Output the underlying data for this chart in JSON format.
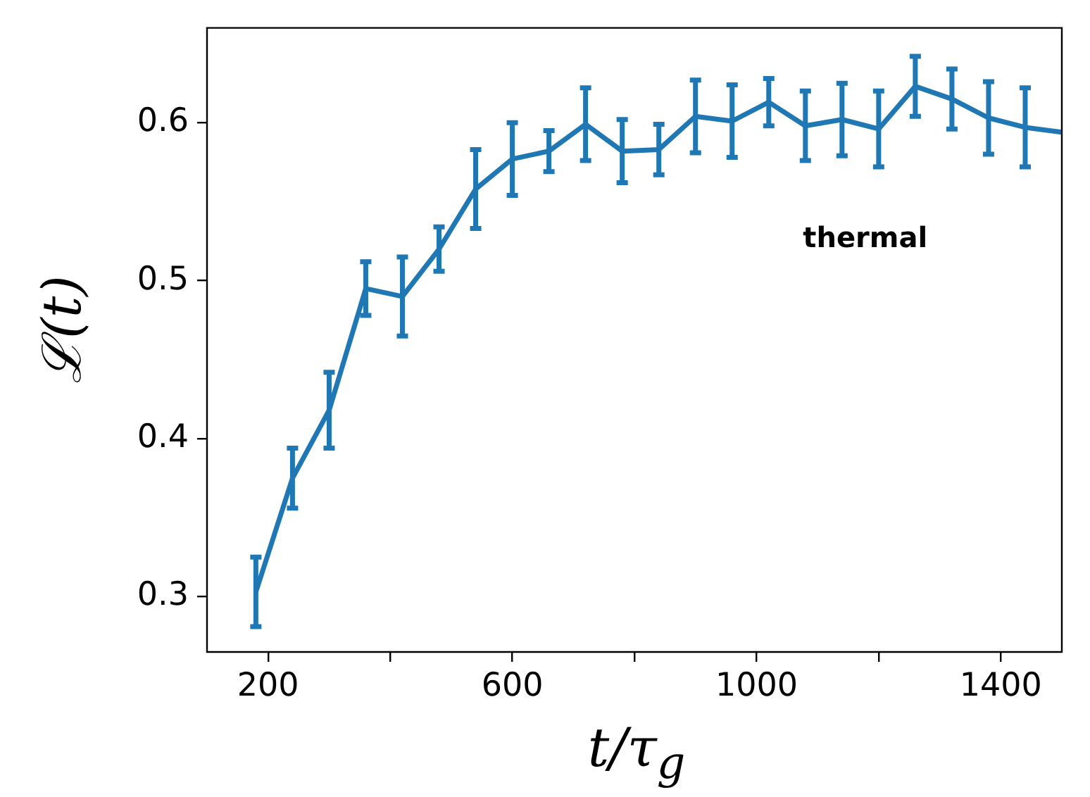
{
  "chart_data": {
    "type": "line",
    "xlabel": "t/τ$_{g}$",
    "ylabel": "ℒ(t)",
    "x": [
      180,
      240,
      300,
      360,
      420,
      480,
      540,
      600,
      660,
      720,
      780,
      840,
      900,
      960,
      1020,
      1080,
      1140,
      1200,
      1260,
      1320,
      1380,
      1440,
      1500
    ],
    "series": [
      {
        "color": "#1f77b4",
        "values": [
          0.303,
          0.375,
          0.418,
          0.495,
          0.49,
          0.52,
          0.558,
          0.577,
          0.582,
          0.599,
          0.582,
          0.583,
          0.604,
          0.601,
          0.613,
          0.598,
          0.602,
          0.596,
          0.623,
          0.615,
          0.603,
          0.597,
          0.594
        ],
        "errors": [
          0.022,
          0.019,
          0.024,
          0.017,
          0.025,
          0.014,
          0.025,
          0.023,
          0.013,
          0.023,
          0.02,
          0.016,
          0.023,
          0.023,
          0.015,
          0.022,
          0.023,
          0.024,
          0.019,
          0.019,
          0.023,
          0.025,
          null
        ]
      }
    ],
    "xlim": [
      100,
      1500
    ],
    "ylim": [
      0.265,
      0.66
    ],
    "xticks": [
      200,
      {
        "value": 400,
        "label": null
      },
      600,
      {
        "value": 800,
        "label": null
      },
      1000,
      {
        "value": 1200,
        "label": null
      },
      1400
    ],
    "yticks": [
      0.3,
      0.4,
      0.5,
      0.6
    ],
    "grid": false,
    "legend": false,
    "annotations": [
      "thermal"
    ]
  }
}
